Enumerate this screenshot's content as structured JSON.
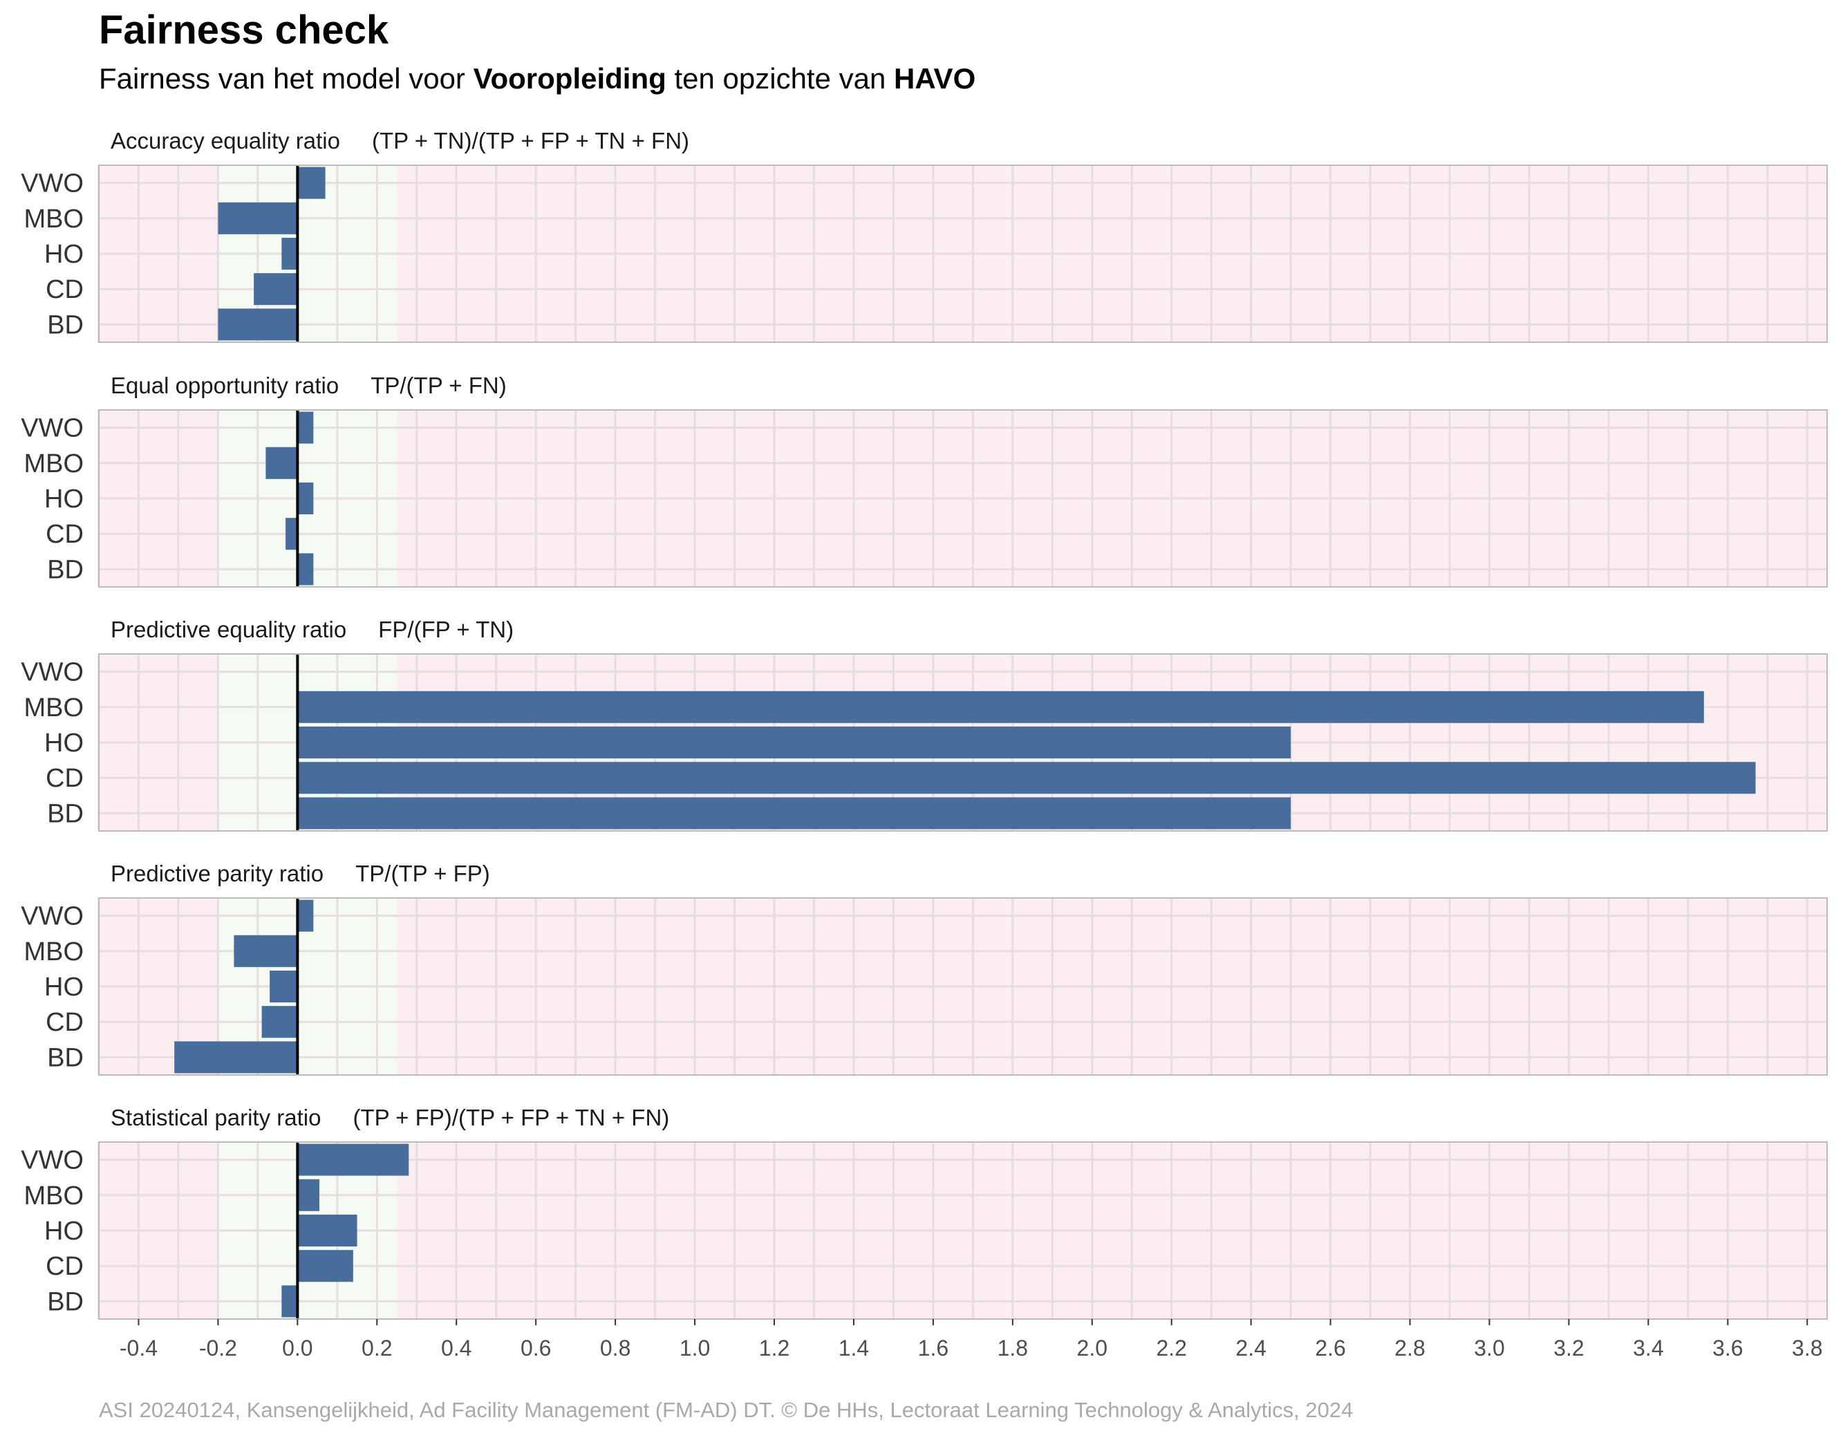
{
  "header": {
    "title": "Fairness check",
    "subtitle_prefix": "Fairness van het model voor ",
    "subtitle_group": "Vooropleiding",
    "subtitle_middle": " ten opzichte van ",
    "subtitle_reference": "HAVO"
  },
  "caption": "ASI 20240124, Kansengelijkheid, Ad Facility Management (FM-AD) DT. © De HHs, Lectoraat Learning Technology & Analytics, 2024",
  "colors": {
    "bar": "#476d9c",
    "fair_zone": "#f5faf3",
    "unfair_zone": "#fcedf0",
    "grid": "#e6dde0",
    "border": "#bbbbbb",
    "zero_line": "#000000"
  },
  "chart_data": {
    "type": "bar",
    "orientation": "horizontal",
    "categories": [
      "VWO",
      "MBO",
      "HO",
      "CD",
      "BD"
    ],
    "xlim": [
      -0.5,
      3.85
    ],
    "x_ticks": [
      "-0.4",
      "-0.2",
      "0.0",
      "0.2",
      "0.4",
      "0.6",
      "0.8",
      "1.0",
      "1.2",
      "1.4",
      "1.6",
      "1.8",
      "2.0",
      "2.2",
      "2.4",
      "2.6",
      "2.8",
      "3.0",
      "3.2",
      "3.4",
      "3.6",
      "3.8"
    ],
    "fair_range": [
      -0.2,
      0.25
    ],
    "grid": true,
    "panels": [
      {
        "title": "Accuracy equality ratio",
        "formula": "(TP + TN)/(TP + FP + TN + FN)",
        "values": [
          0.07,
          -0.2,
          -0.04,
          -0.11,
          -0.2
        ]
      },
      {
        "title": "Equal opportunity ratio",
        "formula": "TP/(TP + FN)",
        "values": [
          0.04,
          -0.08,
          0.04,
          -0.03,
          0.04
        ]
      },
      {
        "title": "Predictive equality ratio",
        "formula": "FP/(FP + TN)",
        "values": [
          0,
          3.54,
          2.5,
          3.67,
          2.5
        ]
      },
      {
        "title": "Predictive parity ratio",
        "formula": "TP/(TP + FP)",
        "values": [
          0.04,
          -0.16,
          -0.07,
          -0.09,
          -0.31
        ]
      },
      {
        "title": "Statistical parity ratio",
        "formula": "(TP + FP)/(TP + FP + TN + FN)",
        "values": [
          0.28,
          0.055,
          0.15,
          0.14,
          -0.04
        ]
      }
    ]
  }
}
